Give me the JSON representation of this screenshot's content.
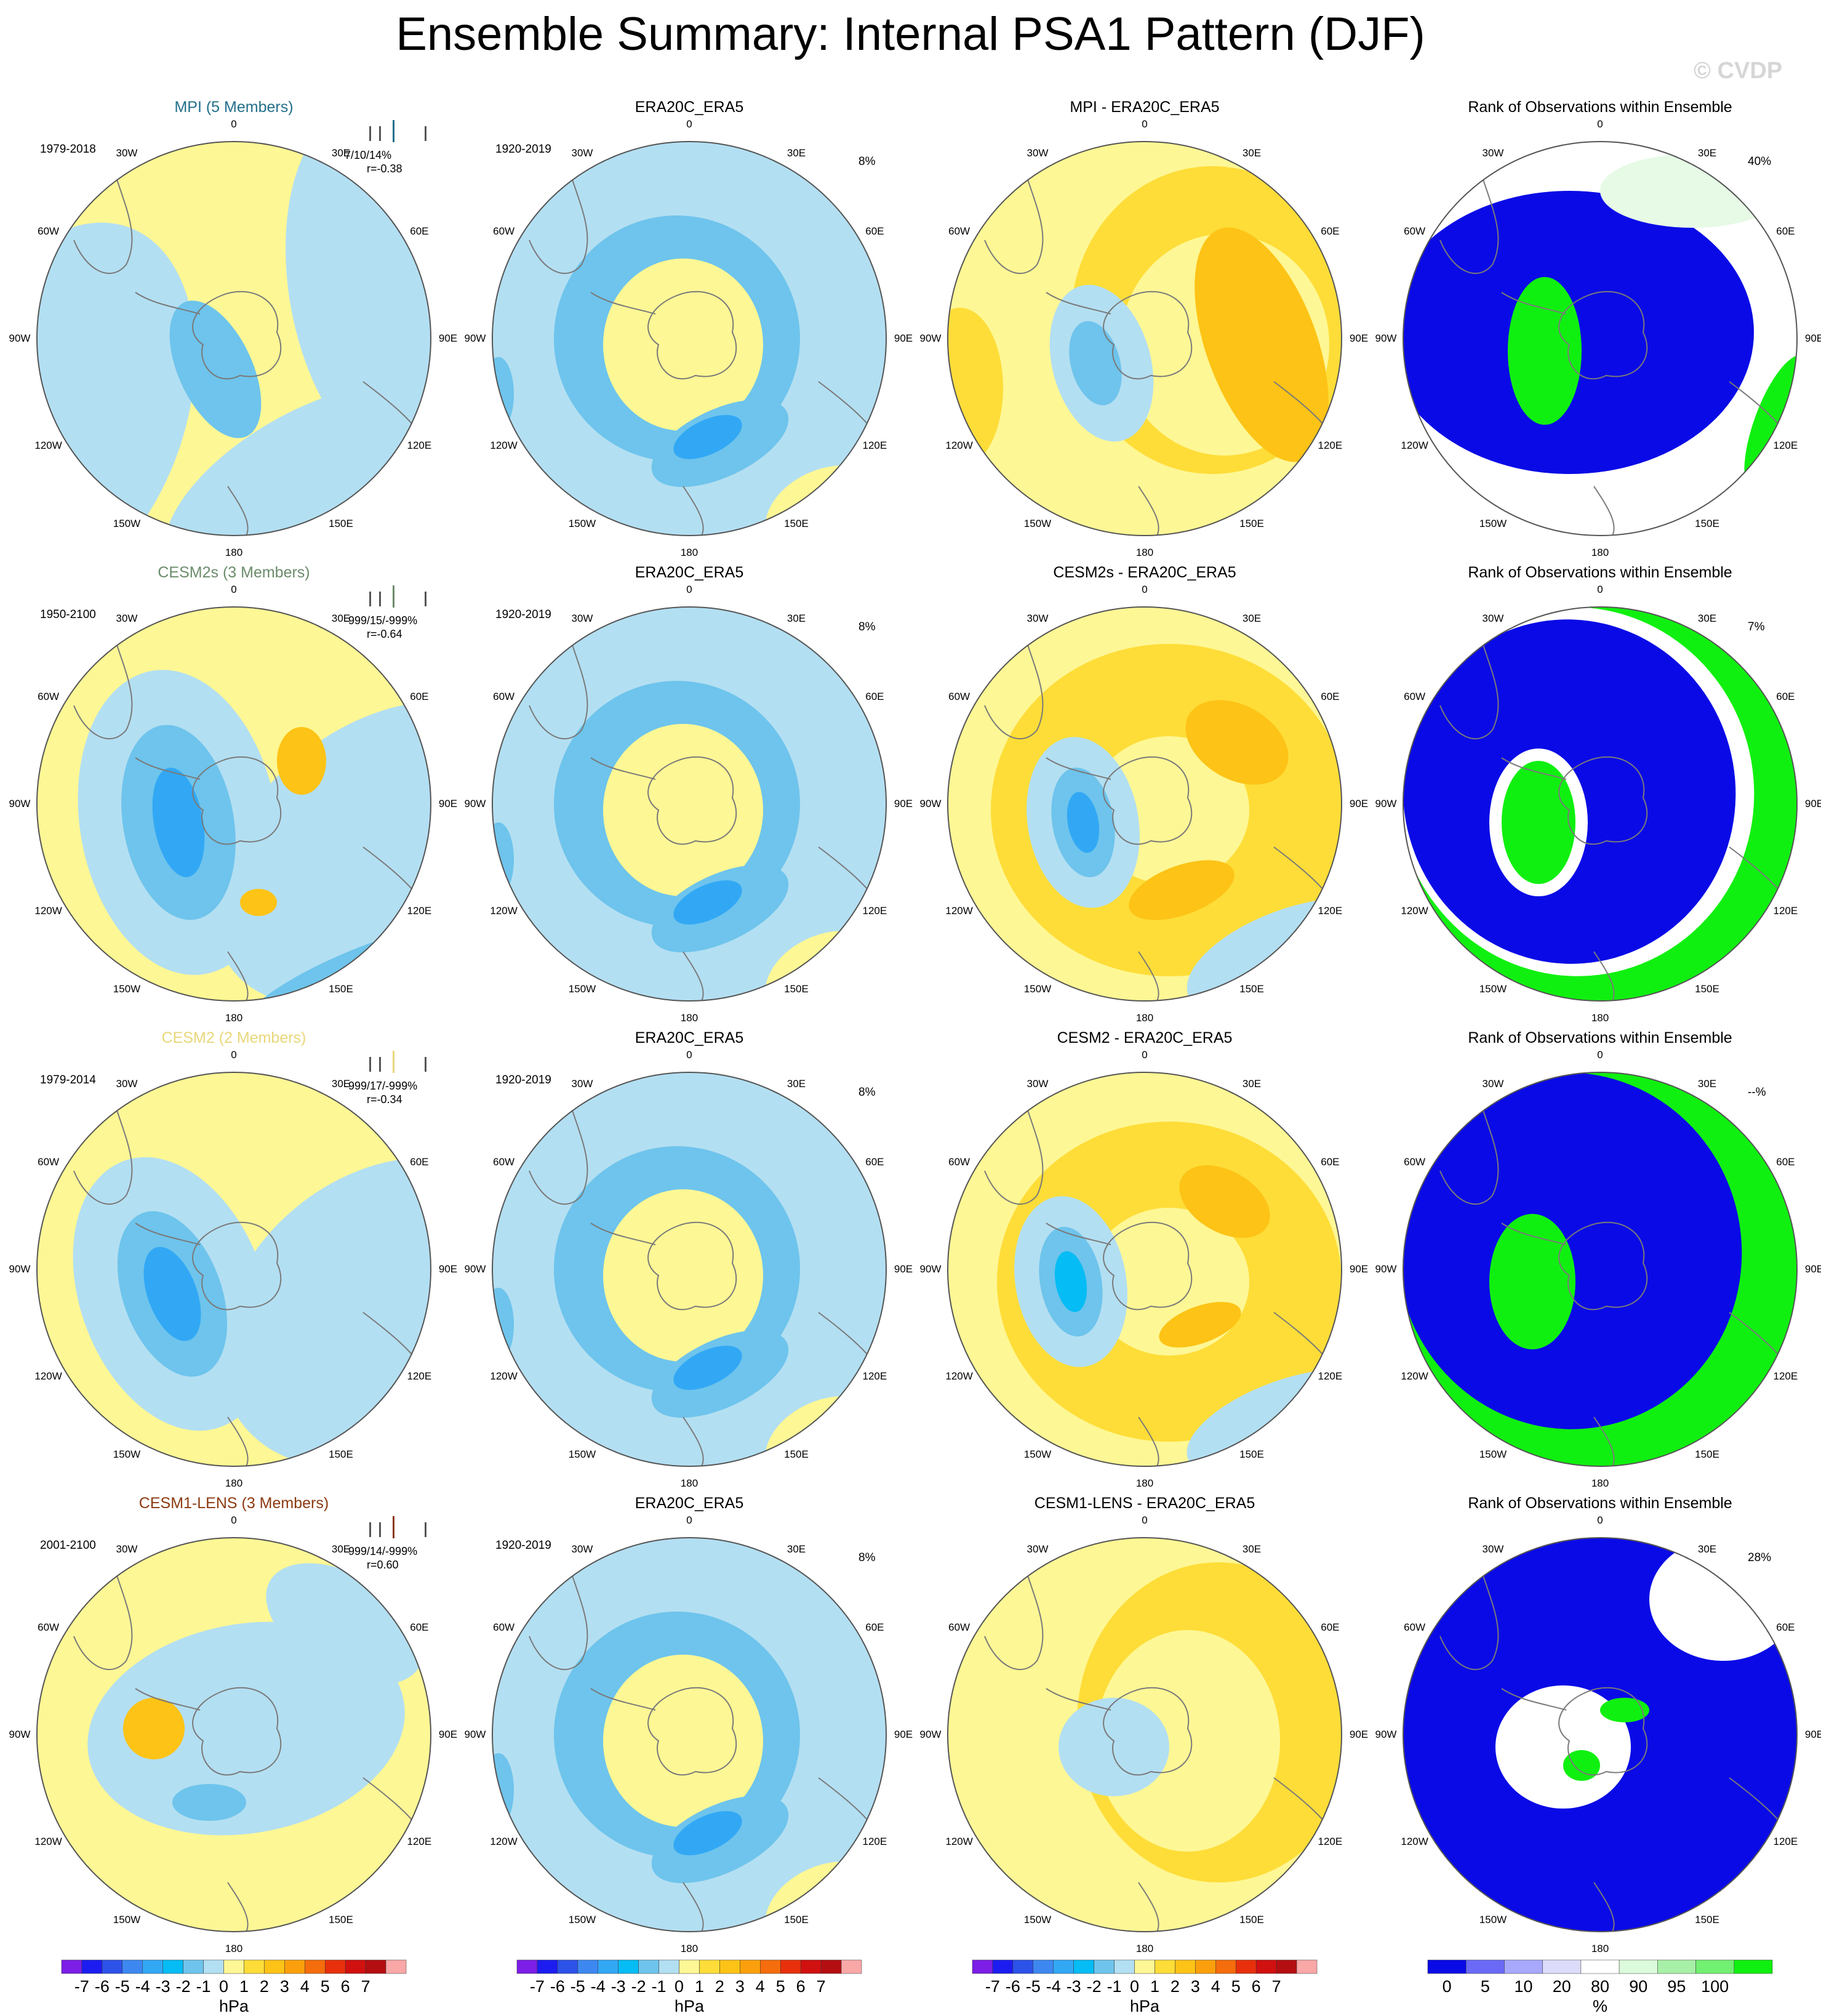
{
  "title": "Ensemble Summary: Internal PSA1 Pattern (DJF)",
  "watermark": "© CVDP",
  "lon_labels": [
    "0",
    "30E",
    "60E",
    "90E",
    "120E",
    "150E",
    "180",
    "150W",
    "120W",
    "90W",
    "60W",
    "30W"
  ],
  "colors": {
    "colorbar_hpa": [
      "#7c1ee6",
      "#1c1cf0",
      "#2c52e8",
      "#3d88f0",
      "#32a8f5",
      "#06bcf4",
      "#6ec4ec",
      "#b3dff2",
      "#fef795",
      "#fedd38",
      "#fdc316",
      "#fba00c",
      "#f56d0c",
      "#e8300c",
      "#d11010",
      "#b40e12",
      "#f9a7a7"
    ],
    "colorbar_rank": [
      "#0a0ae6",
      "#6a6af6",
      "#a8a8fc",
      "#dcdcfa",
      "#ffffff",
      "#dcfadc",
      "#a8f0a8",
      "#72f072",
      "#10f010"
    ],
    "rank_low": "#0a0ae6",
    "rank_mid": "#ffffff",
    "rank_high": "#10f010",
    "rank_lightgreen": "#e6fae6",
    "model_mpi": "#23708a",
    "model_cesm2s": "#6b8c6b",
    "model_cesm2": "#e9d77a",
    "model_cesm1": "#8b3a10"
  },
  "rows": [
    {
      "model_title": "MPI (5 Members)",
      "model_color": "#23708a",
      "model_years": "1979-2018",
      "stats_line1": "7/10/14%",
      "stats_line2": "r=-0.38",
      "obs_title": "ERA20C_ERA5",
      "obs_years": "1920-2019",
      "obs_pct": "8%",
      "diff_title": "MPI - ERA20C_ERA5",
      "rank_title": "Rank of Observations within Ensemble",
      "rank_pct": "40%"
    },
    {
      "model_title": "CESM2s (3 Members)",
      "model_color": "#6b8c6b",
      "model_years": "1950-2100",
      "stats_line1": "-999/15/-999%",
      "stats_line2": "r=-0.64",
      "obs_title": "ERA20C_ERA5",
      "obs_years": "1920-2019",
      "obs_pct": "8%",
      "diff_title": "CESM2s - ERA20C_ERA5",
      "rank_title": "Rank of Observations within Ensemble",
      "rank_pct": "7%"
    },
    {
      "model_title": "CESM2 (2 Members)",
      "model_color": "#e9d77a",
      "model_years": "1979-2014",
      "stats_line1": "-999/17/-999%",
      "stats_line2": "r=-0.34",
      "obs_title": "ERA20C_ERA5",
      "obs_years": "1920-2019",
      "obs_pct": "8%",
      "diff_title": "CESM2 - ERA20C_ERA5",
      "rank_title": "Rank of Observations within Ensemble",
      "rank_pct": "--%"
    },
    {
      "model_title": "CESM1-LENS (3 Members)",
      "model_color": "#8b3a10",
      "model_years": "2001-2100",
      "stats_line1": "-999/14/-999%",
      "stats_line2": "r=0.60",
      "obs_title": "ERA20C_ERA5",
      "obs_years": "1920-2019",
      "obs_pct": "8%",
      "diff_title": "CESM1-LENS - ERA20C_ERA5",
      "rank_title": "Rank of Observations within Ensemble",
      "rank_pct": "28%"
    }
  ],
  "colorbar_hpa": {
    "labels": [
      "-7",
      "-6",
      "-5",
      "-4",
      "-3",
      "-2",
      "-1",
      "0",
      "1",
      "2",
      "3",
      "4",
      "5",
      "6",
      "7"
    ],
    "units": "hPa"
  },
  "colorbar_rank": {
    "labels": [
      "0",
      "5",
      "10",
      "20",
      "80",
      "90",
      "95",
      "100"
    ],
    "units": "%"
  }
}
